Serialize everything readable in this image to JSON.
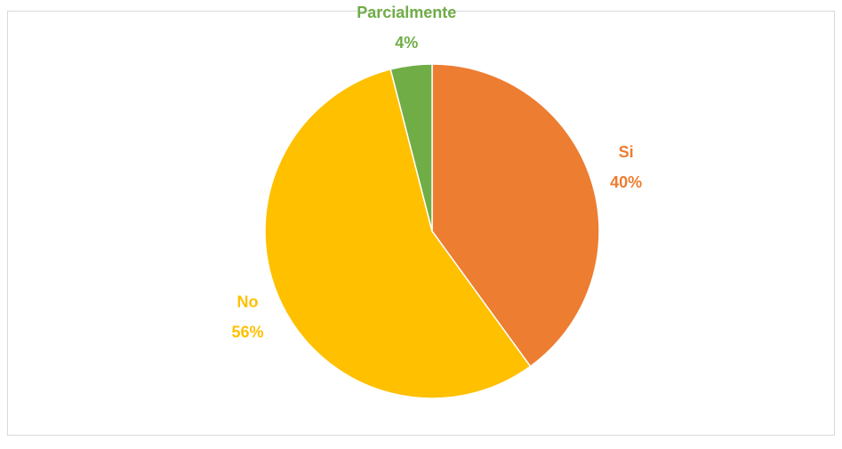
{
  "chart_data": {
    "type": "pie",
    "categories": [
      "Si",
      "No",
      "Parcialmente"
    ],
    "values": [
      40,
      56,
      4
    ],
    "value_labels": [
      "40%",
      "56%",
      "4%"
    ],
    "colors": [
      "#ed7d31",
      "#ffc000",
      "#70ad47"
    ]
  }
}
